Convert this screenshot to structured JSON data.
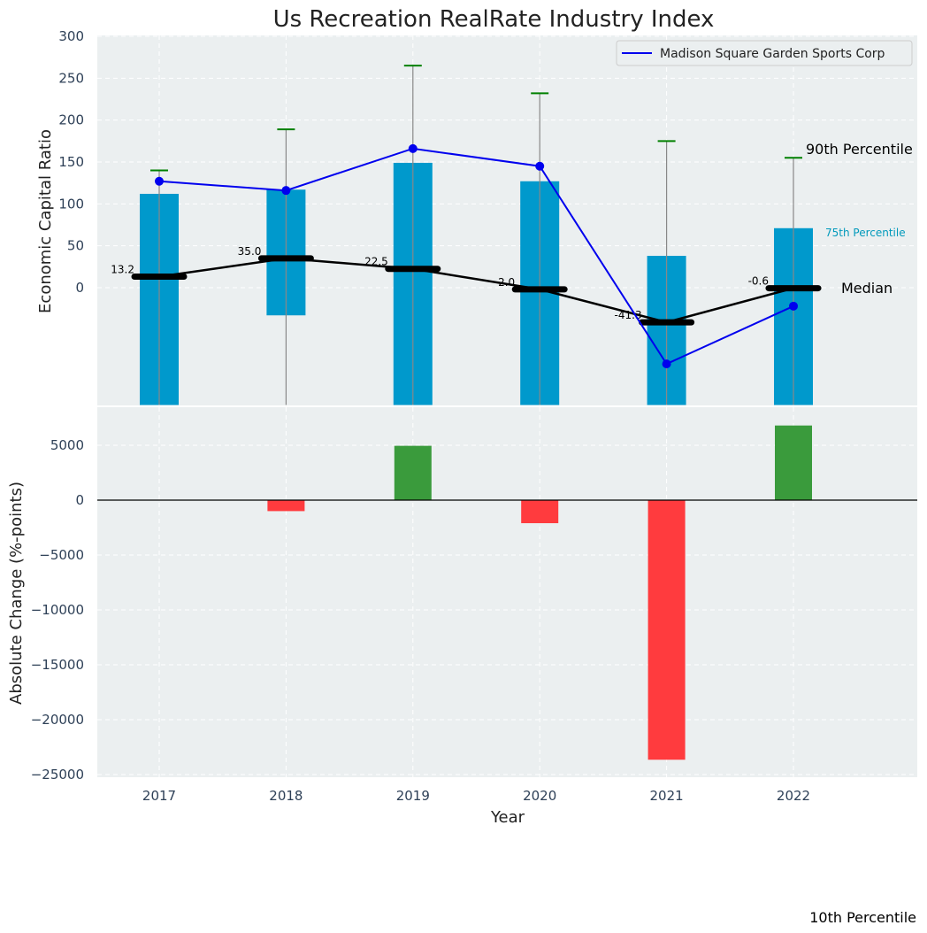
{
  "colors": {
    "panel_bg": "#ebeff0",
    "bar_75": "#0099cc",
    "company_line": "#0000ee",
    "median_line": "#000000",
    "whisker": "#888888",
    "whisker_cap": "#008000",
    "change_pos": "#3a9b3c",
    "change_neg": "#ff3b3e",
    "text_tick": "#2e4057",
    "label_75": "#0099bb"
  },
  "chart_data": [
    {
      "id": "top",
      "type": "bar",
      "title": "Us Recreation RealRate Industry Index",
      "ylabel": "Economic Capital Ratio",
      "xlabel": "",
      "categories": [
        "2017",
        "2018",
        "2019",
        "2020",
        "2021",
        "2022"
      ],
      "ylim": [
        -140,
        300
      ],
      "yticks": [
        0,
        50,
        100,
        150,
        200,
        250,
        300
      ],
      "grid": true,
      "legend": {
        "position": "top-right",
        "entries": [
          "Madison Square Garden Sports Corp"
        ]
      },
      "series": [
        {
          "name": "75th Percentile",
          "kind": "bar",
          "bottom": [
            -140,
            -33,
            -140,
            -140,
            -140,
            -140
          ],
          "top": [
            112,
            117,
            149,
            127,
            38,
            71
          ]
        },
        {
          "name": "90th Percentile",
          "kind": "whisker",
          "values": [
            140,
            189,
            265,
            232,
            175,
            155
          ]
        },
        {
          "name": "10th Percentile",
          "kind": "whisker-bottom",
          "values": [
            -140,
            -140,
            -140,
            -140,
            -140,
            -140
          ]
        },
        {
          "name": "Median",
          "kind": "line",
          "values": [
            13.2,
            35.0,
            22.5,
            -2.0,
            -41.3,
            -0.6
          ],
          "labels": [
            "13.2",
            "35.0",
            "22.5",
            "-2.0",
            "-41.3",
            "-0.6"
          ]
        },
        {
          "name": "Madison Square Garden Sports Corp",
          "kind": "line-markers",
          "values": [
            127,
            116,
            166,
            145,
            -91,
            -22
          ]
        }
      ],
      "annotations": {
        "p90": "90th Percentile",
        "p75": "75th Percentile",
        "median": "Median",
        "p10": "10th Percentile"
      }
    },
    {
      "id": "bottom",
      "type": "bar",
      "title": "",
      "ylabel": "Absolute Change (%-points)",
      "xlabel": "Year",
      "categories": [
        "2017",
        "2018",
        "2019",
        "2020",
        "2021",
        "2022"
      ],
      "ylim": [
        -25000,
        8500
      ],
      "yticks": [
        5000,
        0,
        -5000,
        -10000,
        -15000,
        -20000,
        -25000
      ],
      "ytick_labels": [
        "5000",
        "0",
        "−5000",
        "−10000",
        "−15000",
        "−20000",
        "−25000"
      ],
      "grid": true,
      "values": [
        0,
        -1000,
        4950,
        -2100,
        -23650,
        6800
      ]
    }
  ]
}
